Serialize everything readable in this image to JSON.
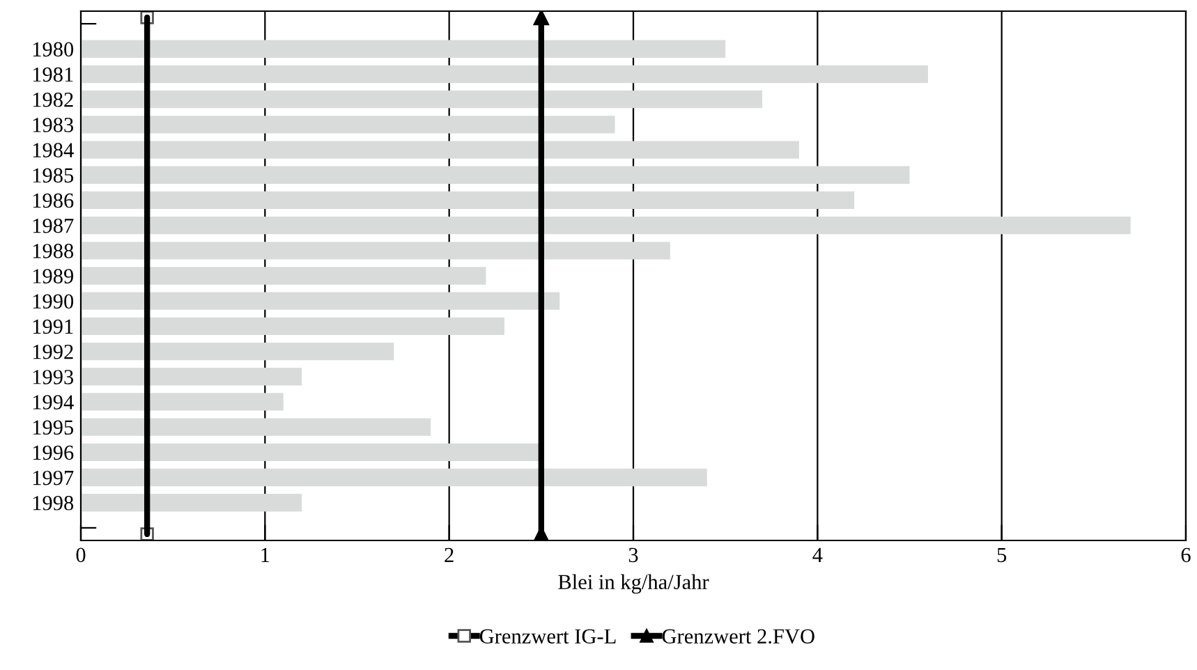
{
  "chart_data": {
    "type": "bar",
    "orientation": "horizontal",
    "xlabel": "Blei in kg/ha/Jahr",
    "categories": [
      null,
      "1980",
      "1981",
      "1982",
      "1983",
      "1984",
      "1985",
      "1986",
      "1987",
      "1988",
      "1989",
      "1990",
      "1991",
      "1992",
      "1993",
      "1994",
      "1995",
      "1996",
      "1997",
      "1998",
      null
    ],
    "values": [
      null,
      3.5,
      4.6,
      3.7,
      2.9,
      3.9,
      4.5,
      4.2,
      5.7,
      3.2,
      2.2,
      2.6,
      2.3,
      1.7,
      1.2,
      1.1,
      1.9,
      2.5,
      3.4,
      1.2,
      null
    ],
    "color": "#d9dbdb",
    "xlim": [
      0,
      6
    ],
    "xticks": [
      0,
      1,
      2,
      3,
      4,
      5,
      6
    ],
    "grid": "x",
    "legend": "bottom",
    "ref_lines": [
      {
        "axis": "x",
        "value": 0.36,
        "label": "Grenzwert IG-L",
        "color": "#000000"
      },
      {
        "axis": "x",
        "value": 2.5,
        "label": "Grenzwert 2.FVO",
        "color": "#000000"
      }
    ]
  }
}
